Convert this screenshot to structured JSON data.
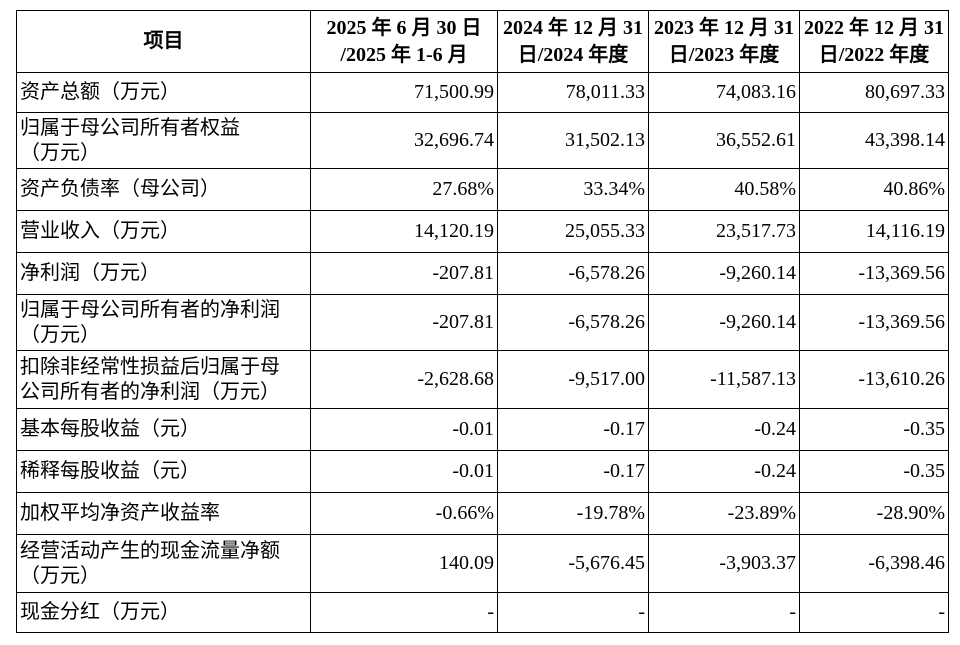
{
  "table": {
    "header": [
      [
        "项目"
      ],
      [
        "2025 年 6 月 30 日",
        "/2025 年 1-6 月"
      ],
      [
        "2024 年 12 月 31",
        "日/2024 年度"
      ],
      [
        "2023 年 12 月 31",
        "日/2023 年度"
      ],
      [
        "2022 年 12 月 31",
        "日/2022 年度"
      ]
    ],
    "rows": [
      {
        "label": [
          "资产总额（万元）"
        ],
        "values": [
          "71,500.99",
          "78,011.33",
          "74,083.16",
          "80,697.33"
        ]
      },
      {
        "label": [
          "归属于母公司所有者权益",
          "（万元）"
        ],
        "values": [
          "32,696.74",
          "31,502.13",
          "36,552.61",
          "43,398.14"
        ]
      },
      {
        "label": [
          "资产负债率（母公司）"
        ],
        "values": [
          "27.68%",
          "33.34%",
          "40.58%",
          "40.86%"
        ]
      },
      {
        "label": [
          "营业收入（万元）"
        ],
        "values": [
          "14,120.19",
          "25,055.33",
          "23,517.73",
          "14,116.19"
        ]
      },
      {
        "label": [
          "净利润（万元）"
        ],
        "values": [
          "-207.81",
          "-6,578.26",
          "-9,260.14",
          "-13,369.56"
        ]
      },
      {
        "label": [
          "归属于母公司所有者的净利润",
          "（万元）"
        ],
        "values": [
          "-207.81",
          "-6,578.26",
          "-9,260.14",
          "-13,369.56"
        ]
      },
      {
        "label": [
          "扣除非经常性损益后归属于母",
          "公司所有者的净利润（万元）"
        ],
        "values": [
          "-2,628.68",
          "-9,517.00",
          "-11,587.13",
          "-13,610.26"
        ]
      },
      {
        "label": [
          "基本每股收益（元）"
        ],
        "values": [
          "-0.01",
          "-0.17",
          "-0.24",
          "-0.35"
        ]
      },
      {
        "label": [
          "稀释每股收益（元）"
        ],
        "values": [
          "-0.01",
          "-0.17",
          "-0.24",
          "-0.35"
        ]
      },
      {
        "label": [
          "加权平均净资产收益率"
        ],
        "values": [
          "-0.66%",
          "-19.78%",
          "-23.89%",
          "-28.90%"
        ]
      },
      {
        "label": [
          "经营活动产生的现金流量净额",
          "（万元）"
        ],
        "values": [
          "140.09",
          "-5,676.45",
          "-3,903.37",
          "-6,398.46"
        ]
      },
      {
        "label": [
          "现金分红（万元）"
        ],
        "values": [
          "-",
          "-",
          "-",
          "-"
        ]
      }
    ]
  }
}
